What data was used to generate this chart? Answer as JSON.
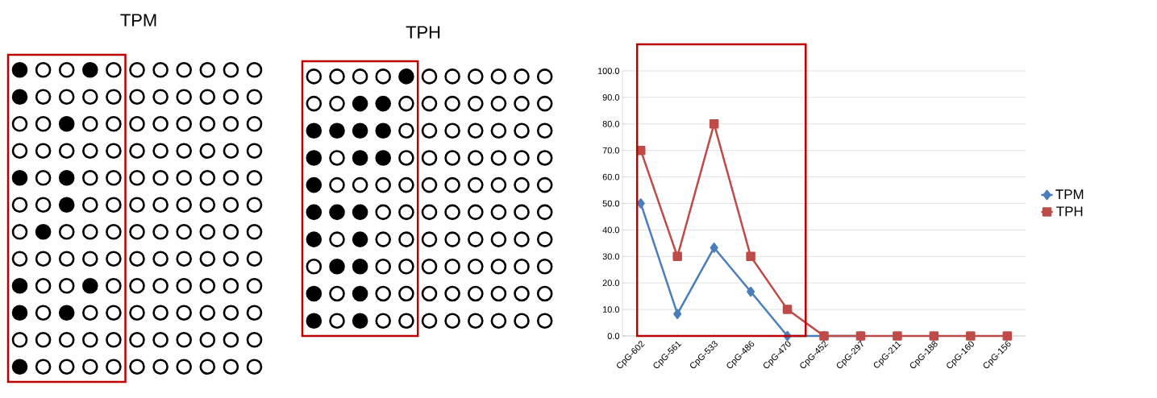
{
  "chart_data": [
    {
      "type": "other",
      "title": "TPM"
    },
    {
      "type": "other",
      "title": "TPH"
    },
    {
      "type": "line",
      "categories": [
        "CpG-602",
        "CpG-561",
        "CpG-533",
        "CpG-486",
        "CpG-470",
        "CpG-452",
        "CpG-297",
        "CpG-211",
        "CpG-188",
        "CpG-160",
        "CpG-156"
      ],
      "series": [
        {
          "name": "TPM",
          "color": "#4a7ebb",
          "marker": "diamond",
          "values": [
            50.0,
            8.3,
            33.3,
            16.7,
            0.0,
            0.0,
            0.0,
            null,
            null,
            null,
            null
          ]
        },
        {
          "name": "TPH",
          "color": "#be4b48",
          "marker": "square",
          "values": [
            70.0,
            30.0,
            80.0,
            30.0,
            10.0,
            0.0,
            0.0,
            0.0,
            0.0,
            0.0,
            0.0
          ]
        }
      ],
      "ylim": [
        0,
        100
      ],
      "yticks": [
        {
          "value": 0,
          "label": "0.0"
        },
        {
          "value": 10,
          "label": "10.0"
        },
        {
          "value": 20,
          "label": "20.0"
        },
        {
          "value": 30,
          "label": "30.0"
        },
        {
          "value": 40,
          "label": "40.0"
        },
        {
          "value": 50,
          "label": "50.0"
        },
        {
          "value": 60,
          "label": "60.0"
        },
        {
          "value": 70,
          "label": "70.0"
        },
        {
          "value": 80,
          "label": "80.0"
        },
        {
          "value": 90,
          "label": "90.0"
        },
        {
          "value": 100,
          "label": "100.0"
        }
      ],
      "grid": "y",
      "legend": "right"
    }
  ]
}
